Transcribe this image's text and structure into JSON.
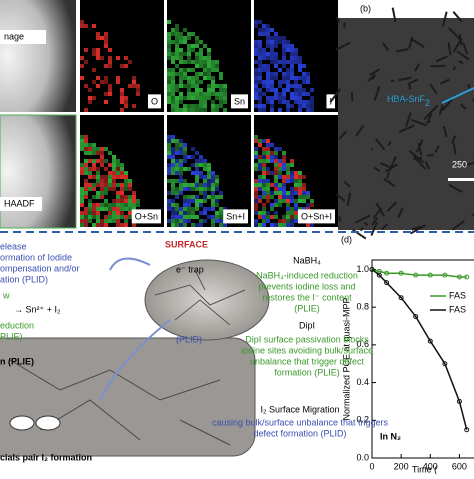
{
  "panel_a": {
    "image_labels": [
      "nage",
      "HAADF"
    ],
    "map_labels": [
      "O",
      "Sn",
      "I",
      "O+Sn",
      "Sn+I",
      "O+Sn+I"
    ]
  },
  "panel_b": {
    "label": "(b)",
    "annotation": "HBA-SnF",
    "annotation_sub": "2",
    "scale_bar": "250"
  },
  "panel_c": {
    "left_lines": [
      "elease",
      "ormation of Iodide",
      "ompensation and/or",
      "ation (PLID)"
    ],
    "w": "w",
    "reaction": "→ Sn²⁺ + I₂",
    "reduction_lines": [
      "eduction",
      "PLIE)"
    ],
    "surface": "SURFACE",
    "trap": "e⁻ trap",
    "plid": "(PLID)",
    "nabh4_title": "NaBH₄",
    "nabh4_lines": [
      "NaBH₄-induced reduction",
      "prevents iodine loss and",
      "restores the I⁻ content",
      "(PLIE)"
    ],
    "dipi_title": "DipI",
    "dipi_lines": [
      "DipI surface passivation blocks",
      "iodine sites avoiding bulk/surface",
      "unbalance that trigger defect",
      "formation (PLIE)"
    ],
    "migration_title": "I₂ Surface Migration",
    "migration_lines": [
      "causing bulk/surface unbalance that triggers",
      "defect formation (PLID)"
    ],
    "bulk_label": "n (PLIE)",
    "bottom_label": "cials pair I₂ formation"
  },
  "chart_data": {
    "type": "line",
    "panel_label": "(d)",
    "y_label": "Normalized PCE at quasi-MPP",
    "x_label": "Time (",
    "annotation": "In N₂",
    "x": [
      0,
      50,
      100,
      200,
      300,
      400,
      500,
      600,
      650
    ],
    "series": [
      {
        "name": "FAS",
        "color": "#3a9a2a",
        "values": [
          1.0,
          0.99,
          0.98,
          0.98,
          0.97,
          0.97,
          0.97,
          0.96,
          0.96
        ]
      },
      {
        "name": "FAS",
        "color": "#111111",
        "values": [
          1.0,
          0.97,
          0.93,
          0.85,
          0.75,
          0.62,
          0.5,
          0.3,
          0.15
        ]
      }
    ],
    "xlim": [
      0,
      700
    ],
    "ylim": [
      0,
      1.05
    ],
    "xticks": [
      0,
      200,
      400,
      600
    ],
    "yticks": [
      {
        "value": 0,
        "label": "0.0"
      },
      {
        "value": 0.2,
        "label": "0.2"
      },
      {
        "value": 0.4,
        "label": "0.4"
      },
      {
        "value": 0.6,
        "label": "0.6"
      },
      {
        "value": 0.8,
        "label": "0.8"
      },
      {
        "value": 1,
        "label": "1.0"
      }
    ]
  }
}
